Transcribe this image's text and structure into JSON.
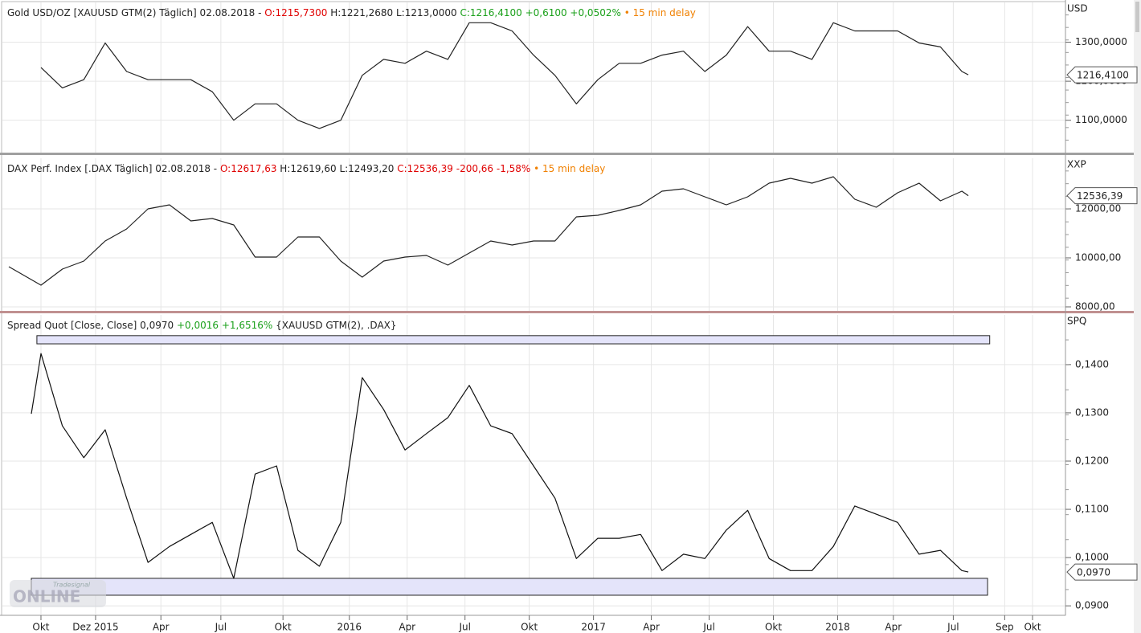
{
  "chart_data": [
    {
      "type": "line",
      "unit": "USD",
      "color": "#222222",
      "grid": true,
      "header": [
        {
          "text": "Gold USD/OZ [XAUUSD GTM(2) Täglich] 02.08.2018 - ",
          "color": "#222222"
        },
        {
          "text": "O:1215,7300",
          "color": "#e00000"
        },
        {
          "text": " H:1221,2680 L:1213,0000 ",
          "color": "#222222"
        },
        {
          "text": "C:1216,4100 +0,6100 +0,0502%",
          "color": "#1aa01a"
        },
        {
          "text": " • 15 min delay",
          "color": "#f08000"
        }
      ],
      "x": [
        0,
        1,
        2,
        3,
        4,
        5,
        6,
        7,
        8,
        9,
        10,
        11,
        12,
        13,
        14,
        15,
        16,
        17,
        18,
        19,
        20,
        21,
        22,
        23,
        24,
        25,
        26,
        27,
        28,
        29,
        30,
        31,
        32,
        33,
        34,
        35,
        36,
        37,
        38,
        39,
        40,
        41,
        42,
        43,
        43.3
      ],
      "values": [
        1235,
        1183,
        1204,
        1298,
        1225,
        1204,
        1204,
        1204,
        1173,
        1100,
        1142,
        1142,
        1100,
        1079,
        1100,
        1215,
        1256,
        1246,
        1277,
        1256,
        1350,
        1350,
        1329,
        1267,
        1215,
        1142,
        1204,
        1246,
        1246,
        1267,
        1277,
        1225,
        1267,
        1340,
        1277,
        1277,
        1256,
        1350,
        1329,
        1329,
        1329,
        1298,
        1288,
        1225,
        1216.41
      ],
      "xlim": [
        -1.8,
        47.8
      ],
      "ylim": [
        1017,
        1402
      ],
      "yticks": [
        {
          "value": 1100,
          "label": "1100,0000"
        },
        {
          "value": 1200,
          "label": "1200,0000"
        },
        {
          "value": 1300,
          "label": "1300,0000"
        }
      ],
      "last_value": 1216.41,
      "last_label": "1216,4100"
    },
    {
      "type": "line",
      "unit": "XXP",
      "color": "#222222",
      "grid": true,
      "header": [
        {
          "text": "DAX Perf. Index [.DAX Täglich] 02.08.2018 - ",
          "color": "#222222"
        },
        {
          "text": "O:12617,63",
          "color": "#e00000"
        },
        {
          "text": " H:12619,60 L:12493,20 ",
          "color": "#222222"
        },
        {
          "text": "C:12536,39 -200,66 -1,58%",
          "color": "#e00000"
        },
        {
          "text": " • 15 min delay",
          "color": "#f08000"
        }
      ],
      "x": [
        -1.5,
        0,
        1,
        2,
        3,
        4,
        5,
        6,
        7,
        8,
        9,
        10,
        11,
        12,
        13,
        14,
        15,
        16,
        17,
        18,
        19,
        20,
        21,
        22,
        23,
        24,
        25,
        26,
        27,
        28,
        29,
        30,
        31,
        32,
        33,
        34,
        35,
        36,
        37,
        38,
        39,
        40,
        41,
        42,
        43,
        43.3
      ],
      "values": [
        9640,
        8885,
        9541,
        9869,
        10689,
        11180,
        12000,
        12164,
        11508,
        11607,
        11344,
        10033,
        10033,
        10852,
        10852,
        9869,
        9213,
        9869,
        10033,
        10098,
        9705,
        10197,
        10689,
        10525,
        10689,
        10689,
        11672,
        11738,
        11934,
        12164,
        12721,
        12820,
        12492,
        12164,
        12492,
        13049,
        13246,
        13049,
        13311,
        12393,
        12066,
        12656,
        13049,
        12328,
        12721,
        12536.39
      ],
      "xlim": [
        -1.8,
        47.8
      ],
      "ylim": [
        7836,
        14066
      ],
      "yticks": [
        {
          "value": 8000,
          "label": "8000,00"
        },
        {
          "value": 10000,
          "label": "10000,00"
        },
        {
          "value": 12000,
          "label": "12000,00"
        }
      ],
      "last_value": 12536.39,
      "last_label": "12536,39"
    },
    {
      "type": "line",
      "unit": "SPQ",
      "color": "#111111",
      "grid": true,
      "header": [
        {
          "text": "Spread Quot [Close, Close] 0,0970 ",
          "color": "#222222"
        },
        {
          "text": "+0,0016 +1,6516%",
          "color": "#1aa01a"
        },
        {
          "text": " {XAUUSD GTM(2), .DAX}",
          "color": "#222222"
        }
      ],
      "x": [
        -0.45,
        0,
        1,
        2,
        3,
        4,
        5,
        6,
        7,
        8,
        9,
        10,
        11,
        12,
        13,
        14,
        15,
        16,
        17,
        18,
        19,
        20,
        21,
        22,
        23,
        24,
        25,
        26,
        27,
        28,
        29,
        30,
        31,
        32,
        33,
        34,
        35,
        36,
        37,
        38,
        39,
        40,
        41,
        42,
        43,
        43.3
      ],
      "values": [
        0.1298,
        0.1423,
        0.1273,
        0.1207,
        0.1265,
        0.1123,
        0.099,
        0.1023,
        0.1048,
        0.1073,
        0.0957,
        0.1173,
        0.119,
        0.1015,
        0.0982,
        0.1073,
        0.1373,
        0.1307,
        0.1223,
        0.1257,
        0.129,
        0.1357,
        0.1273,
        0.1257,
        0.119,
        0.1123,
        0.0998,
        0.104,
        0.104,
        0.1048,
        0.0973,
        0.1007,
        0.0998,
        0.1057,
        0.1098,
        0.0998,
        0.0973,
        0.0973,
        0.1023,
        0.1107,
        0.109,
        0.1073,
        0.1007,
        0.1015,
        0.0973,
        0.097
      ],
      "xlim": [
        -1.8,
        47.8
      ],
      "ylim": [
        0.0882,
        0.1503
      ],
      "yticks": [
        {
          "value": 0.09,
          "label": "0,0900"
        },
        {
          "value": 0.1,
          "label": "0,1000"
        },
        {
          "value": 0.11,
          "label": "0,1100"
        },
        {
          "value": 0.12,
          "label": "0,1200"
        },
        {
          "value": 0.13,
          "label": "0,1300"
        },
        {
          "value": 0.14,
          "label": "0,1400"
        }
      ],
      "xticks": [
        {
          "value": 0,
          "label": "Okt"
        },
        {
          "value": 2.55,
          "label": "Dez 2015"
        },
        {
          "value": 5.6,
          "label": "Apr"
        },
        {
          "value": 8.4,
          "label": "Jul"
        },
        {
          "value": 11.3,
          "label": "Okt"
        },
        {
          "value": 14.4,
          "label": "2016"
        },
        {
          "value": 17.1,
          "label": "Apr"
        },
        {
          "value": 19.8,
          "label": "Jul"
        },
        {
          "value": 22.8,
          "label": "Okt"
        },
        {
          "value": 25.8,
          "label": "2017"
        },
        {
          "value": 28.5,
          "label": "Apr"
        },
        {
          "value": 31.2,
          "label": "Jul"
        },
        {
          "value": 34.2,
          "label": "Okt"
        },
        {
          "value": 37.2,
          "label": "2018"
        },
        {
          "value": 39.8,
          "label": "Apr"
        },
        {
          "value": 42.6,
          "label": "Jul"
        },
        {
          "value": 45.0,
          "label": "Sep"
        },
        {
          "value": 46.3,
          "label": "Okt"
        }
      ],
      "bands": [
        {
          "x": [
            -0.19,
            44.3
          ],
          "y": [
            0.1443,
            0.146
          ]
        },
        {
          "x": [
            -0.45,
            44.2
          ],
          "y": [
            0.0922,
            0.0957
          ]
        }
      ],
      "band_color": "#e4e4fa",
      "last_value": 0.097,
      "last_label": "0,0970",
      "watermark": [
        "Tradesignal",
        "ONLINE"
      ]
    }
  ]
}
